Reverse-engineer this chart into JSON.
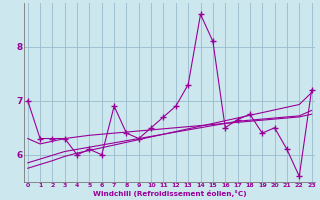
{
  "xlabel": "Windchill (Refroidissement éolien,°C)",
  "x": [
    0,
    1,
    2,
    3,
    4,
    5,
    6,
    7,
    8,
    9,
    10,
    11,
    12,
    13,
    14,
    15,
    16,
    17,
    18,
    19,
    20,
    21,
    22,
    23
  ],
  "line1": [
    7.0,
    6.3,
    6.3,
    6.3,
    6.0,
    6.1,
    6.0,
    6.9,
    6.4,
    6.3,
    6.5,
    6.7,
    6.9,
    7.3,
    8.6,
    8.1,
    6.5,
    6.65,
    6.75,
    6.4,
    6.5,
    6.1,
    5.6,
    7.2
  ],
  "line2": [
    6.3,
    6.2,
    6.25,
    6.3,
    6.33,
    6.36,
    6.38,
    6.4,
    6.42,
    6.44,
    6.46,
    6.48,
    6.5,
    6.52,
    6.54,
    6.56,
    6.58,
    6.6,
    6.62,
    6.64,
    6.66,
    6.68,
    6.7,
    6.75
  ],
  "line3": [
    5.85,
    5.92,
    5.99,
    6.06,
    6.1,
    6.14,
    6.18,
    6.22,
    6.26,
    6.3,
    6.34,
    6.38,
    6.42,
    6.46,
    6.5,
    6.54,
    6.58,
    6.62,
    6.64,
    6.66,
    6.68,
    6.7,
    6.72,
    6.82
  ],
  "line4": [
    5.75,
    5.82,
    5.89,
    5.97,
    6.03,
    6.08,
    6.13,
    6.18,
    6.23,
    6.28,
    6.33,
    6.38,
    6.43,
    6.48,
    6.53,
    6.58,
    6.63,
    6.68,
    6.73,
    6.78,
    6.83,
    6.88,
    6.93,
    7.15
  ],
  "line_color": "#990099",
  "bg_color": "#cce8ee",
  "grid_color": "#99bbcc",
  "ylim": [
    5.5,
    8.8
  ],
  "yticks": [
    6,
    7,
    8
  ],
  "xlim": [
    -0.3,
    23.3
  ],
  "marker": "+",
  "marker_size": 4,
  "lw": 0.8
}
